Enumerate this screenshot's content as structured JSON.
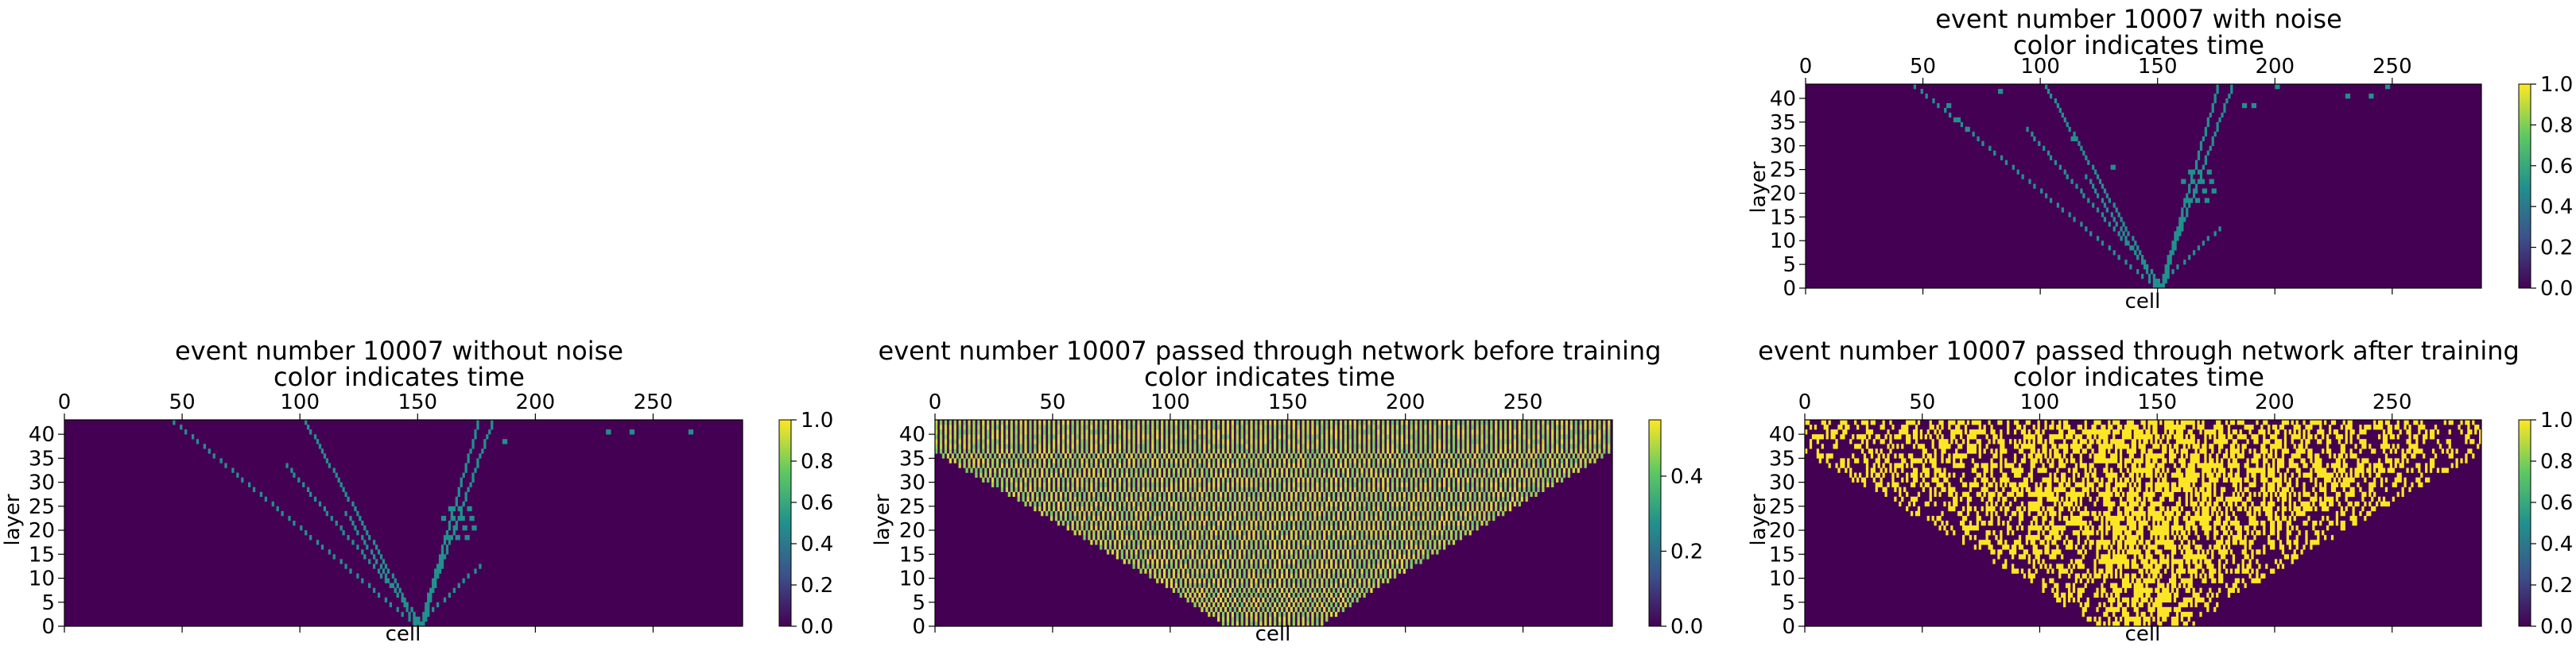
{
  "chart_data": [
    {
      "type": "heatmap",
      "panel": "noisy",
      "title": "event number 10007 with noise",
      "subtitle": "color indicates time",
      "xlabel": "cell",
      "ylabel": "layer",
      "xlim": [
        0,
        288
      ],
      "ylim": [
        0,
        43
      ],
      "xticks": [
        0,
        50,
        100,
        150,
        200,
        250
      ],
      "yticks": [
        0,
        5,
        10,
        15,
        20,
        25,
        30,
        35,
        40
      ],
      "colorbar": {
        "min": 0.0,
        "max": 1.0,
        "ticks": [
          0.0,
          0.2,
          0.4,
          0.6,
          0.8,
          1.0
        ]
      },
      "background_value": 0.0,
      "hit_value": 0.5,
      "tracks": [
        {
          "x0": 148,
          "x1": 44,
          "y0": 0,
          "y1": 43
        },
        {
          "x0": 150,
          "x1": 101,
          "y0": 0,
          "y1": 43
        },
        {
          "x0": 152,
          "x1": 92,
          "y0": 0,
          "y1": 34
        },
        {
          "x0": 151,
          "x1": 176,
          "y0": 0,
          "y1": 43
        },
        {
          "x0": 152,
          "x1": 161,
          "y0": 0,
          "y1": 16
        },
        {
          "x0": 153,
          "x1": 182,
          "y0": 3,
          "y1": 43
        },
        {
          "x0": 154,
          "x1": 178,
          "y0": 2,
          "y1": 13
        },
        {
          "x0": 149,
          "x1": 118,
          "y0": 0,
          "y1": 24
        }
      ],
      "scatter_hits": [
        [
          163,
          24
        ],
        [
          167,
          24
        ],
        [
          171,
          24
        ],
        [
          160,
          22
        ],
        [
          164,
          22
        ],
        [
          168,
          22
        ],
        [
          172,
          22
        ],
        [
          165,
          20
        ],
        [
          169,
          20
        ],
        [
          173,
          20
        ],
        [
          162,
          18
        ],
        [
          166,
          18
        ],
        [
          170,
          18
        ],
        [
          200,
          42
        ],
        [
          230,
          40
        ],
        [
          240,
          40
        ],
        [
          247,
          42
        ],
        [
          186,
          38
        ],
        [
          190,
          38
        ],
        [
          60,
          38
        ],
        [
          64,
          35
        ],
        [
          68,
          33
        ],
        [
          82,
          41
        ],
        [
          130,
          25
        ],
        [
          113,
          31
        ]
      ]
    },
    {
      "type": "heatmap",
      "panel": "clean",
      "title": "event number 10007 without noise",
      "subtitle": "color indicates time",
      "xlabel": "cell",
      "ylabel": "layer",
      "xlim": [
        0,
        288
      ],
      "ylim": [
        0,
        43
      ],
      "xticks": [
        0,
        50,
        100,
        150,
        200,
        250
      ],
      "yticks": [
        0,
        5,
        10,
        15,
        20,
        25,
        30,
        35,
        40
      ],
      "colorbar": {
        "min": 0.0,
        "max": 1.0,
        "ticks": [
          0.0,
          0.2,
          0.4,
          0.6,
          0.8,
          1.0
        ]
      },
      "background_value": 0.0,
      "hit_value": 0.5,
      "tracks": [
        {
          "x0": 148,
          "x1": 44,
          "y0": 0,
          "y1": 43
        },
        {
          "x0": 150,
          "x1": 101,
          "y0": 0,
          "y1": 43
        },
        {
          "x0": 152,
          "x1": 92,
          "y0": 0,
          "y1": 34
        },
        {
          "x0": 151,
          "x1": 176,
          "y0": 0,
          "y1": 43
        },
        {
          "x0": 152,
          "x1": 161,
          "y0": 0,
          "y1": 16
        },
        {
          "x0": 153,
          "x1": 182,
          "y0": 3,
          "y1": 43
        },
        {
          "x0": 154,
          "x1": 178,
          "y0": 2,
          "y1": 13
        },
        {
          "x0": 149,
          "x1": 118,
          "y0": 0,
          "y1": 24
        }
      ],
      "scatter_hits": [
        [
          163,
          24
        ],
        [
          167,
          24
        ],
        [
          171,
          24
        ],
        [
          160,
          22
        ],
        [
          164,
          22
        ],
        [
          168,
          22
        ],
        [
          172,
          22
        ],
        [
          165,
          20
        ],
        [
          169,
          20
        ],
        [
          173,
          20
        ],
        [
          162,
          18
        ],
        [
          166,
          18
        ],
        [
          170,
          18
        ],
        [
          230,
          40
        ],
        [
          240,
          40
        ],
        [
          265,
          40
        ],
        [
          186,
          38
        ]
      ]
    },
    {
      "type": "heatmap",
      "panel": "before",
      "title": "event number 10007 passed through network before training",
      "subtitle": "color indicates time",
      "xlabel": "cell",
      "ylabel": "layer",
      "xlim": [
        0,
        288
      ],
      "ylim": [
        0,
        43
      ],
      "xticks": [
        0,
        50,
        100,
        150,
        200,
        250
      ],
      "yticks": [
        0,
        5,
        10,
        15,
        20,
        25,
        30,
        35,
        40
      ],
      "colorbar": {
        "min": 0.0,
        "max": 0.55,
        "ticks": [
          0.0,
          0.2,
          0.4
        ]
      },
      "background_value": 0.0,
      "mask_profile_halfwidth_by_layer": [
        [
          0,
          22
        ],
        [
          1,
          24
        ],
        [
          2,
          28
        ],
        [
          3,
          31
        ],
        [
          4,
          34
        ],
        [
          5,
          37
        ],
        [
          6,
          40
        ],
        [
          7,
          43
        ],
        [
          8,
          46
        ],
        [
          9,
          50
        ],
        [
          10,
          53
        ],
        [
          11,
          57
        ],
        [
          12,
          60
        ],
        [
          13,
          64
        ],
        [
          14,
          67
        ],
        [
          15,
          71
        ],
        [
          16,
          74
        ],
        [
          17,
          78
        ],
        [
          18,
          81
        ],
        [
          19,
          85
        ],
        [
          20,
          88
        ],
        [
          21,
          92
        ],
        [
          22,
          95
        ],
        [
          23,
          99
        ],
        [
          24,
          102
        ],
        [
          25,
          106
        ],
        [
          26,
          109
        ],
        [
          27,
          113
        ],
        [
          28,
          116
        ],
        [
          29,
          120
        ],
        [
          30,
          124
        ],
        [
          31,
          127
        ],
        [
          32,
          131
        ],
        [
          33,
          134
        ],
        [
          34,
          138
        ],
        [
          35,
          141
        ],
        [
          36,
          144
        ],
        [
          37,
          144
        ],
        [
          38,
          144
        ],
        [
          39,
          144
        ],
        [
          40,
          144
        ],
        [
          41,
          144
        ],
        [
          42,
          144
        ]
      ],
      "inside_value_range": [
        0.42,
        0.52
      ]
    },
    {
      "type": "heatmap",
      "panel": "after",
      "title": "event number 10007 passed through network after training",
      "subtitle": "color indicates time",
      "xlabel": "cell",
      "ylabel": "layer",
      "xlim": [
        0,
        288
      ],
      "ylim": [
        0,
        43
      ],
      "xticks": [
        0,
        50,
        100,
        150,
        200,
        250
      ],
      "yticks": [
        0,
        5,
        10,
        15,
        20,
        25,
        30,
        35,
        40
      ],
      "colorbar": {
        "min": 0.0,
        "max": 1.0,
        "ticks": [
          0.0,
          0.2,
          0.4,
          0.6,
          0.8,
          1.0
        ]
      },
      "background_value": 0.0,
      "inside_values": [
        0.0,
        1.0
      ],
      "inside_fill_fraction": 0.5
    }
  ],
  "colors": {
    "viridis_low": "#440154",
    "viridis_mid": "#21918c",
    "viridis_high": "#fde725"
  }
}
